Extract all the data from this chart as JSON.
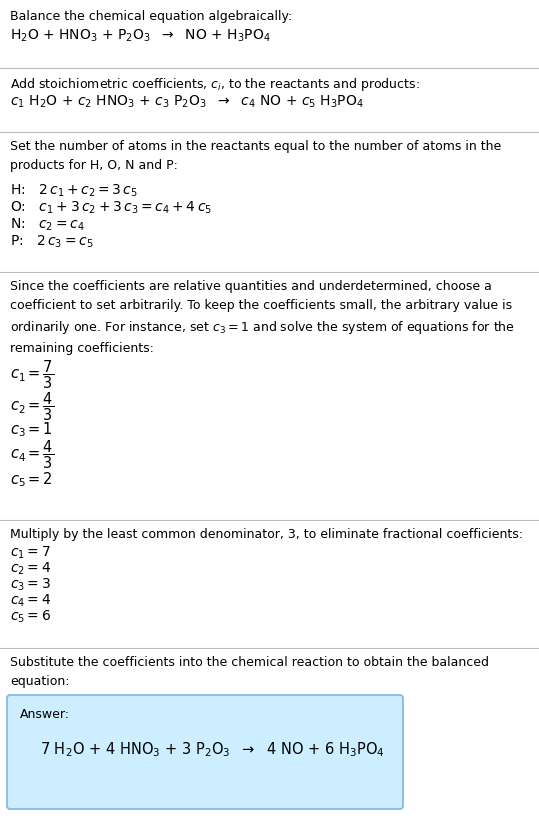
{
  "bg_color": "#ffffff",
  "text_color": "#000000",
  "section1_title": "Balance the chemical equation algebraically:",
  "section1_eq": "H$_2$O + HNO$_3$ + P$_2$O$_3$  $\\rightarrow$  NO + H$_3$PO$_4$",
  "section2_title": "Add stoichiometric coefficients, $c_i$, to the reactants and products:",
  "section2_eq": "$c_1$ H$_2$O + $c_2$ HNO$_3$ + $c_3$ P$_2$O$_3$  $\\rightarrow$  $c_4$ NO + $c_5$ H$_3$PO$_4$",
  "section3_title": "Set the number of atoms in the reactants equal to the number of atoms in the\nproducts for H, O, N and P:",
  "section3_lines": [
    "H:   $2\\,c_1 + c_2 = 3\\,c_5$",
    "O:   $c_1 + 3\\,c_2 + 3\\,c_3 = c_4 + 4\\,c_5$",
    "N:   $c_2 = c_4$",
    "P:   $2\\,c_3 = c_5$"
  ],
  "section4_title": "Since the coefficients are relative quantities and underdetermined, choose a\ncoefficient to set arbitrarily. To keep the coefficients small, the arbitrary value is\nordinarily one. For instance, set $c_3 = 1$ and solve the system of equations for the\nremaining coefficients:",
  "section4_lines": [
    "$c_1 = \\dfrac{7}{3}$",
    "$c_2 = \\dfrac{4}{3}$",
    "$c_3 = 1$",
    "$c_4 = \\dfrac{4}{3}$",
    "$c_5 = 2$"
  ],
  "section5_title": "Multiply by the least common denominator, 3, to eliminate fractional coefficients:",
  "section5_lines": [
    "$c_1 = 7$",
    "$c_2 = 4$",
    "$c_3 = 3$",
    "$c_4 = 4$",
    "$c_5 = 6$"
  ],
  "section6_title": "Substitute the coefficients into the chemical reaction to obtain the balanced\nequation:",
  "answer_label": "Answer:",
  "answer_eq": "7 H$_2$O + 4 HNO$_3$ + 3 P$_2$O$_3$  $\\rightarrow$  4 NO + 6 H$_3$PO$_4$",
  "answer_box_color": "#cceeff",
  "answer_box_edge": "#88bbdd",
  "fig_width": 5.39,
  "fig_height": 8.3,
  "dpi": 100
}
